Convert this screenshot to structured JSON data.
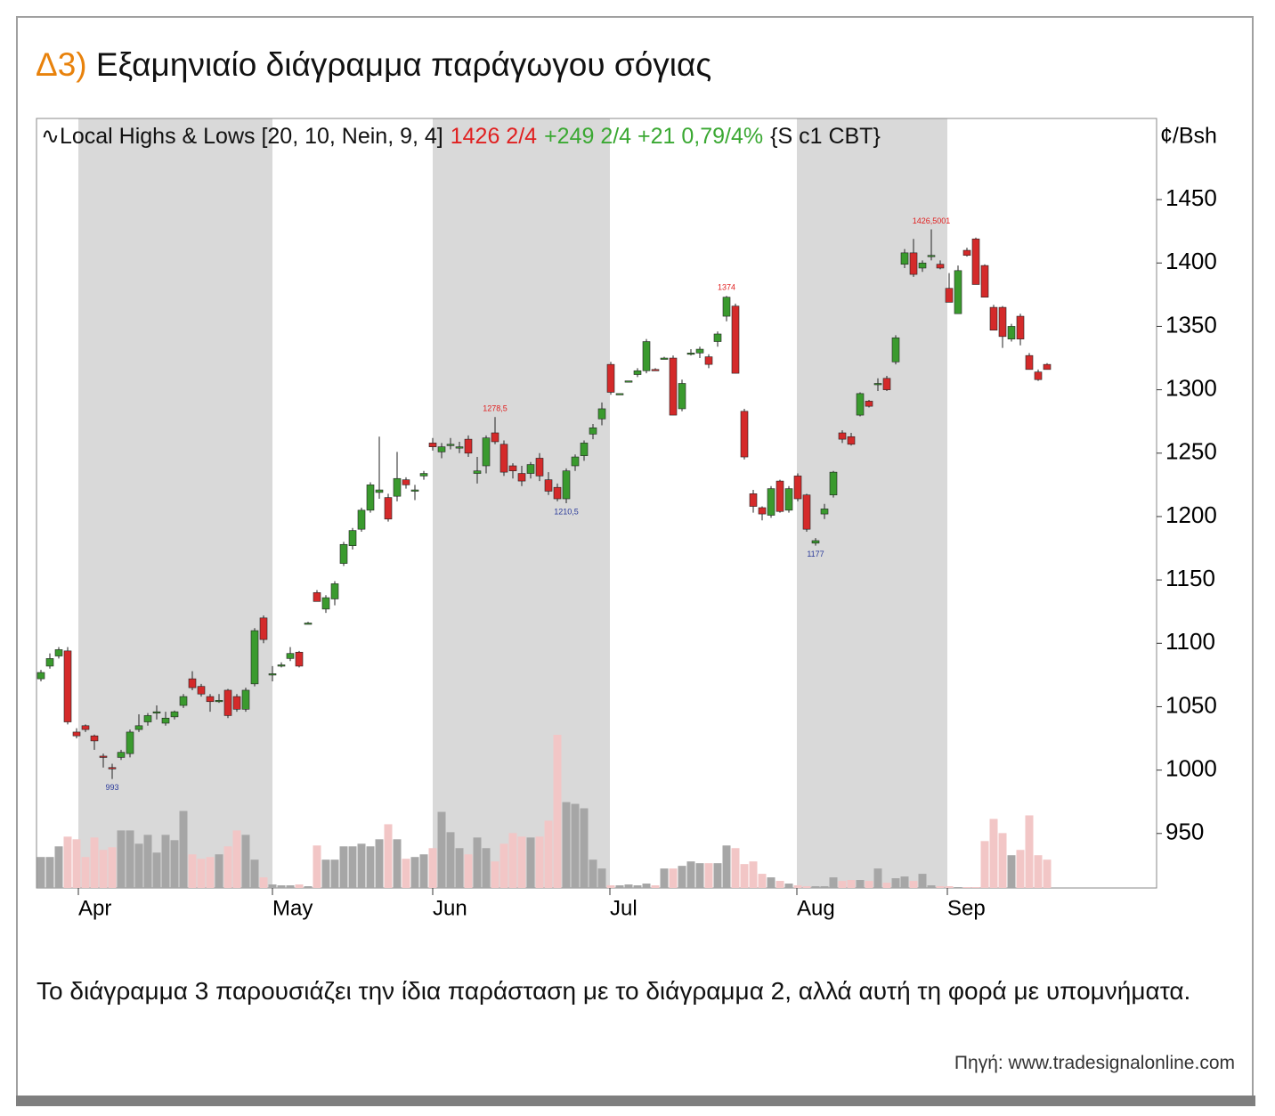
{
  "title_prefix": "Δ3)",
  "title": "Εξαμηνιαίο διάγραμμα παράγωγου σόγιας",
  "caption": "Το διάγραμμα 3 παρουσιάζει την ίδια παράσταση με το διάγραμμα 2, αλλά αυτή τη φορά με υπομνήματα.",
  "source": "Πηγή: www.tradesignalonline.com",
  "chart_data": {
    "type": "candlestick",
    "header": [
      {
        "text": "∿Local Highs & Lows [20, 10, Nein, 9, 4]",
        "color": "#111111"
      },
      {
        "text": "1426 2/4",
        "color": "#e02020"
      },
      {
        "text": "+249 2/4 +21 0,79/4%",
        "color": "#3aa832"
      },
      {
        "text": "{S c1 CBT}",
        "color": "#111111"
      }
    ],
    "y_label": "¢/Bsh",
    "up_color": "#3a9a2e",
    "down_color": "#d42a2a",
    "volume_up_color": "#a6a6a6",
    "volume_down_color": "#f2c6c6",
    "shade_color": "#d9d9d9",
    "xlim": [
      -0.5,
      125.3
    ],
    "xticks": [
      {
        "value": 4.2,
        "label": "Apr"
      },
      {
        "value": 26,
        "label": "May"
      },
      {
        "value": 44,
        "label": "Jun"
      },
      {
        "value": 63.9,
        "label": "Jul"
      },
      {
        "value": 84.9,
        "label": "Aug"
      },
      {
        "value": 101.8,
        "label": "Sep"
      }
    ],
    "ylim": [
      907,
      1514
    ],
    "yticks": [
      950,
      1000,
      1050,
      1100,
      1150,
      1200,
      1250,
      1300,
      1350,
      1400,
      1450
    ],
    "open": [
      1072,
      1082,
      1090,
      1094,
      1030,
      1035,
      1027,
      1011,
      1002,
      1010,
      1013,
      1032,
      1038,
      1045,
      1037,
      1042,
      1051,
      1072,
      1066,
      1058,
      1055,
      1063,
      1058,
      1048,
      1068,
      1120,
      1075,
      1083,
      1088,
      1093,
      1116,
      1140,
      1127,
      1135,
      1163,
      1177,
      1190,
      1205,
      1219,
      1215,
      1216,
      1229,
      1220,
      1232,
      1258,
      1251,
      1256,
      1255,
      1261,
      1234,
      1240,
      1266,
      1257,
      1240,
      1234,
      1234,
      1246,
      1229,
      1223,
      1214,
      1240,
      1248,
      1265,
      1277,
      1320,
      1297,
      1307,
      1312,
      1315,
      1316,
      1325,
      1325,
      1285,
      1329,
      1329,
      1326,
      1338,
      1358,
      1366,
      1283,
      1218,
      1207,
      1201,
      1228,
      1205,
      1232,
      1217,
      1179,
      1202,
      1217,
      1266,
      1263,
      1280,
      1291,
      1305,
      1309,
      1322,
      1399,
      1408,
      1396,
      1406,
      1399,
      1380,
      1360,
      1410,
      1419,
      1398,
      1365,
      1365,
      1340,
      1358,
      1327,
      1314,
      1320
    ],
    "high": [
      1079,
      1092,
      1097,
      1097,
      1033,
      1036,
      1028,
      1013,
      1005,
      1016,
      1032,
      1044,
      1045,
      1051,
      1046,
      1047,
      1060,
      1078,
      1068,
      1060,
      1060,
      1064,
      1060,
      1065,
      1112,
      1122,
      1082,
      1085,
      1097,
      1094,
      1117,
      1142,
      1138,
      1149,
      1180,
      1191,
      1207,
      1227,
      1263,
      1218,
      1251,
      1231,
      1225,
      1236,
      1262,
      1258,
      1262,
      1259,
      1264,
      1247,
      1264,
      1278.5,
      1260,
      1242,
      1240,
      1243,
      1250,
      1235,
      1226,
      1238,
      1249,
      1260,
      1273,
      1290,
      1322,
      1297,
      1307,
      1317,
      1340,
      1317,
      1326,
      1327,
      1308,
      1332,
      1334,
      1328,
      1346,
      1374,
      1368,
      1285,
      1221,
      1208,
      1224,
      1229,
      1224,
      1234,
      1218,
      1183,
      1210,
      1236,
      1268,
      1266,
      1298,
      1292,
      1309,
      1311,
      1343,
      1411,
      1419,
      1402,
      1426.5,
      1402,
      1392,
      1398,
      1412,
      1420,
      1399,
      1367,
      1366,
      1352,
      1360,
      1329,
      1316,
      1321
    ],
    "low": [
      1070,
      1080,
      1088,
      1036,
      1025,
      1030,
      1016,
      1002,
      993,
      1008,
      1010,
      1030,
      1035,
      1040,
      1035,
      1040,
      1049,
      1063,
      1058,
      1046,
      1053,
      1041,
      1046,
      1046,
      1066,
      1100,
      1070,
      1081,
      1086,
      1081,
      1115,
      1133,
      1124,
      1130,
      1161,
      1174,
      1188,
      1203,
      1214,
      1196,
      1212,
      1222,
      1213,
      1229,
      1252,
      1246,
      1253,
      1250,
      1247,
      1226,
      1234,
      1257,
      1232,
      1230,
      1224,
      1230,
      1228,
      1217,
      1212,
      1210.5,
      1236,
      1244,
      1261,
      1272,
      1296,
      1297,
      1307,
      1310,
      1313,
      1315,
      1324,
      1280,
      1283,
      1327,
      1325,
      1317,
      1334,
      1354,
      1313,
      1245,
      1203,
      1197,
      1199,
      1203,
      1203,
      1212,
      1188,
      1177,
      1198,
      1215,
      1258,
      1256,
      1279,
      1286,
      1299,
      1299,
      1320,
      1396,
      1389,
      1393,
      1402,
      1395,
      1369,
      1360,
      1405,
      1383,
      1373,
      1347,
      1333,
      1338,
      1335,
      1316,
      1307,
      1316
    ],
    "close": [
      1077,
      1088,
      1095,
      1038,
      1027,
      1032,
      1023,
      1010,
      1001,
      1014,
      1030,
      1035,
      1043,
      1046,
      1041,
      1046,
      1058,
      1065,
      1060,
      1054,
      1055,
      1043,
      1048,
      1063,
      1110,
      1103,
      1076,
      1083,
      1092,
      1082,
      1116,
      1133,
      1136,
      1147,
      1178,
      1189,
      1205,
      1225,
      1221,
      1198,
      1230,
      1225,
      1221,
      1234,
      1255,
      1255,
      1257,
      1255,
      1250,
      1236,
      1262,
      1259,
      1235,
      1236,
      1228,
      1241,
      1232,
      1220,
      1214,
      1236,
      1247,
      1258,
      1270,
      1285,
      1298,
      1297,
      1307,
      1315,
      1338,
      1315,
      1325,
      1280,
      1305,
      1329,
      1332,
      1320,
      1344,
      1373,
      1313,
      1247,
      1208,
      1202,
      1222,
      1204,
      1222,
      1214,
      1190,
      1181,
      1206,
      1235,
      1261,
      1257,
      1297,
      1287,
      1305,
      1300,
      1341,
      1408,
      1391,
      1400,
      1406,
      1396,
      1369,
      1394,
      1406,
      1383,
      1373,
      1347,
      1342,
      1350,
      1340,
      1316,
      1308,
      1316
    ],
    "volume": [
      35,
      35,
      47,
      58,
      55,
      35,
      57,
      43,
      46,
      65,
      65,
      50,
      60,
      40,
      60,
      54,
      87,
      38,
      33,
      35,
      38,
      47,
      65,
      60,
      32,
      12,
      4,
      3,
      3,
      4,
      2,
      48,
      32,
      32,
      47,
      47,
      50,
      47,
      55,
      72,
      55,
      33,
      35,
      38,
      45,
      86,
      63,
      45,
      38,
      57,
      45,
      30,
      50,
      62,
      58,
      57,
      58,
      76,
      173,
      97,
      95,
      90,
      32,
      22,
      3,
      3,
      4,
      3,
      5,
      3,
      22,
      22,
      25,
      30,
      28,
      28,
      28,
      48,
      45,
      27,
      30,
      16,
      12,
      8,
      5,
      3,
      2,
      2,
      2,
      12,
      8,
      9,
      9,
      8,
      22,
      6,
      11,
      13,
      8,
      16,
      3,
      2,
      2,
      1,
      1,
      1,
      53,
      78,
      62,
      37,
      43,
      82,
      37,
      32
    ],
    "annotations": [
      {
        "x": 8,
        "value": 993,
        "label": "993",
        "color": "#2a3a9a",
        "side": "low"
      },
      {
        "x": 51,
        "value": 1278.5,
        "label": "1278,5",
        "color": "#e02020",
        "side": "high"
      },
      {
        "x": 59,
        "value": 1210.5,
        "label": "1210,5",
        "color": "#2a3a9a",
        "side": "low"
      },
      {
        "x": 77,
        "value": 1374,
        "label": "1374",
        "color": "#e02020",
        "side": "high"
      },
      {
        "x": 87,
        "value": 1177,
        "label": "1177",
        "color": "#2a3a9a",
        "side": "low"
      },
      {
        "x": 100,
        "value": 1426.5,
        "label": "1426,5001",
        "color": "#e02020",
        "side": "high"
      }
    ]
  }
}
